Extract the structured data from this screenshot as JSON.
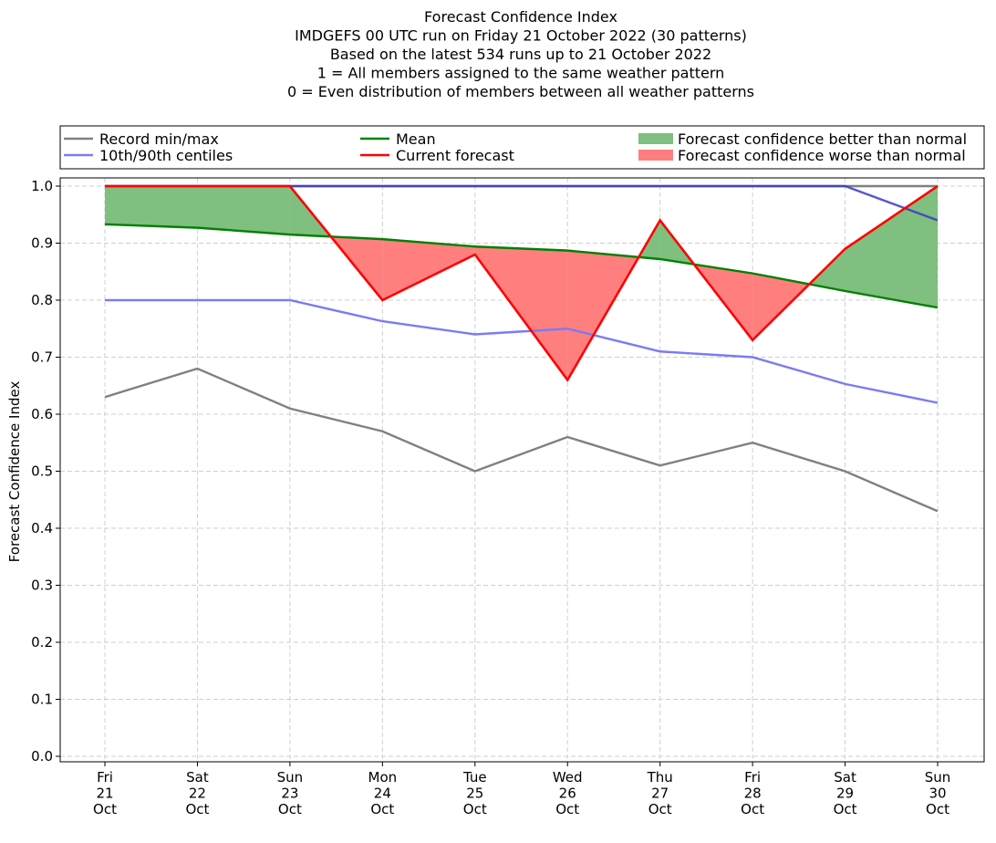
{
  "chart_data": {
    "type": "line",
    "title": [
      "Forecast Confidence Index",
      "IMDGEFS 00 UTC run on Friday 21 October 2022 (30 patterns)",
      "Based on the latest 534 runs up to 21 October 2022",
      "1 = All members assigned to the same weather pattern",
      "0 = Even distribution of members between all weather patterns"
    ],
    "ylabel": "Forecast Confidence Index",
    "xlabel": "",
    "categories": [
      [
        "Fri",
        "21",
        "Oct"
      ],
      [
        "Sat",
        "22",
        "Oct"
      ],
      [
        "Sun",
        "23",
        "Oct"
      ],
      [
        "Mon",
        "24",
        "Oct"
      ],
      [
        "Tue",
        "25",
        "Oct"
      ],
      [
        "Wed",
        "26",
        "Oct"
      ],
      [
        "Thu",
        "27",
        "Oct"
      ],
      [
        "Fri",
        "28",
        "Oct"
      ],
      [
        "Sat",
        "29",
        "Oct"
      ],
      [
        "Sun",
        "30",
        "Oct"
      ]
    ],
    "ylim": [
      0.0,
      1.0
    ],
    "yticks": [
      "0.0",
      "0.1",
      "0.2",
      "0.3",
      "0.4",
      "0.5",
      "0.6",
      "0.7",
      "0.8",
      "0.9",
      "1.0"
    ],
    "grid": true,
    "series": [
      {
        "name": "Record min/max",
        "role": "record_min",
        "color": "#808080",
        "values": [
          0.63,
          0.68,
          0.61,
          0.57,
          0.5,
          0.56,
          0.51,
          0.55,
          0.5,
          0.43
        ]
      },
      {
        "name": "Record min/max",
        "role": "record_max",
        "color": "#808080",
        "values": [
          1.0,
          1.0,
          1.0,
          1.0,
          1.0,
          1.0,
          1.0,
          1.0,
          1.0,
          1.0
        ]
      },
      {
        "name": "10th/90th centiles",
        "role": "p10",
        "color": "#7b7bf2",
        "values": [
          0.8,
          0.8,
          0.8,
          0.763,
          0.74,
          0.75,
          0.71,
          0.7,
          0.653,
          0.62
        ]
      },
      {
        "name": "10th/90th centiles",
        "role": "p90",
        "color": "#3a3ac8",
        "values": [
          1.0,
          1.0,
          1.0,
          1.0,
          1.0,
          1.0,
          1.0,
          1.0,
          1.0,
          0.94
        ]
      },
      {
        "name": "Mean",
        "role": "mean",
        "color": "#008000",
        "values": [
          0.933,
          0.927,
          0.915,
          0.907,
          0.894,
          0.887,
          0.872,
          0.847,
          0.816,
          0.787
        ]
      },
      {
        "name": "Current forecast",
        "role": "current",
        "color": "#ff0000",
        "values": [
          1.0,
          1.0,
          1.0,
          0.8,
          0.88,
          0.66,
          0.94,
          0.73,
          0.89,
          1.0
        ]
      }
    ],
    "fills": [
      {
        "name": "Forecast confidence better than normal",
        "color": "#7fbf7f"
      },
      {
        "name": "Forecast confidence worse than normal",
        "color": "#ff7f7f"
      }
    ],
    "legend": {
      "placement": "top",
      "entries": [
        {
          "label": "Record min/max",
          "kind": "line",
          "color": "#808080"
        },
        {
          "label": "10th/90th centiles",
          "kind": "line",
          "color": "#7b7bf2"
        },
        {
          "label": "Mean",
          "kind": "line",
          "color": "#008000"
        },
        {
          "label": "Current forecast",
          "kind": "line",
          "color": "#ff0000"
        },
        {
          "label": "Forecast confidence better than normal",
          "kind": "patch",
          "color": "#7fbf7f"
        },
        {
          "label": "Forecast confidence worse than normal",
          "kind": "patch",
          "color": "#ff7f7f"
        }
      ]
    }
  }
}
